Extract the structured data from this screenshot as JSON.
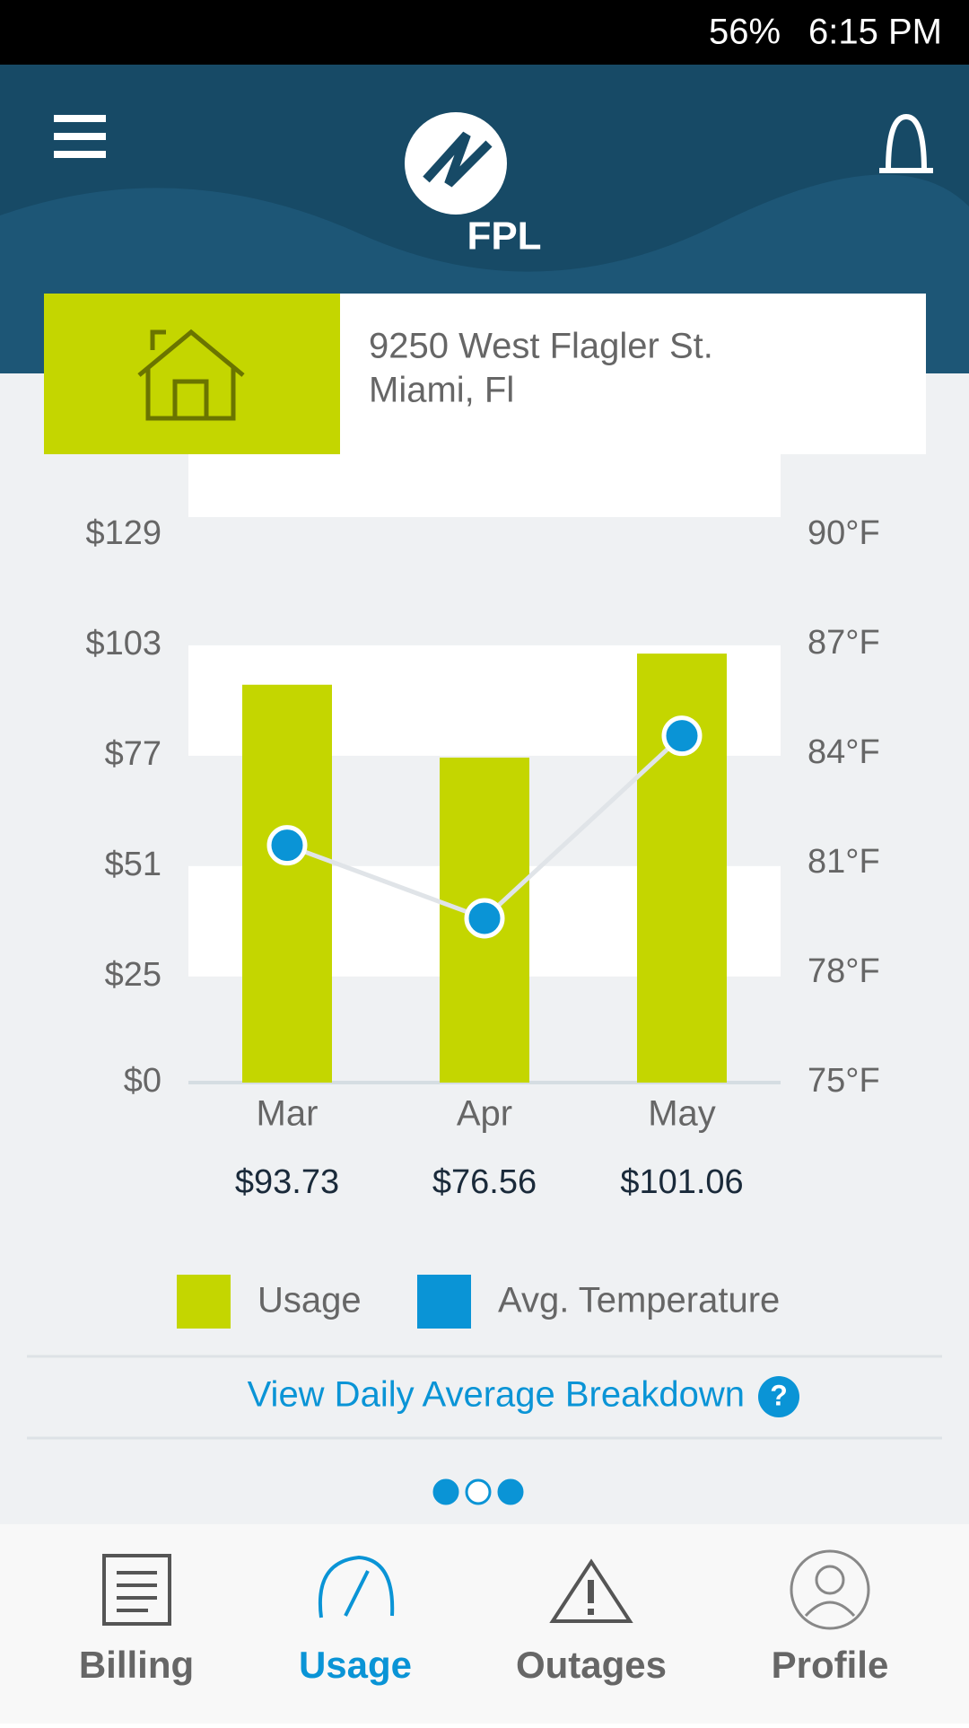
{
  "status_bar": {
    "battery": "56%",
    "time": "6:15 PM"
  },
  "header": {
    "logo": "FPL"
  },
  "address": {
    "line1": "9250 West Flagler St.",
    "line2": "Miami, Fl"
  },
  "chart_data": {
    "type": "bar",
    "categories": [
      "Mar",
      "Apr",
      "May"
    ],
    "series": [
      {
        "name": "Usage",
        "type": "bar",
        "color": "#c4d600",
        "values": [
          93.73,
          76.56,
          101.06
        ],
        "value_labels": [
          "$93.73",
          "$76.56",
          "$101.06"
        ]
      },
      {
        "name": "Avg. Temperature",
        "type": "line",
        "axis": "y2",
        "color": "#0a94d6",
        "values": [
          81.5,
          79.5,
          84.5
        ]
      }
    ],
    "ylim": [
      0,
      129
    ],
    "yticks": [
      {
        "value": 0,
        "label": "$0"
      },
      {
        "value": 25,
        "label": "$25"
      },
      {
        "value": 51,
        "label": "$51"
      },
      {
        "value": 77,
        "label": "$77"
      },
      {
        "value": 103,
        "label": "$103"
      },
      {
        "value": 129,
        "label": "$129"
      }
    ],
    "y2lim": [
      75,
      90
    ],
    "y2ticks": [
      {
        "value": 75,
        "label": "75°F"
      },
      {
        "value": 78,
        "label": "78°F"
      },
      {
        "value": 81,
        "label": "81°F"
      },
      {
        "value": 84,
        "label": "84°F"
      },
      {
        "value": 87,
        "label": "87°F"
      },
      {
        "value": 90,
        "label": "90°F"
      }
    ]
  },
  "link": {
    "text": "View Daily Average Breakdown",
    "help": "?"
  },
  "nav": [
    {
      "label": "Billing"
    },
    {
      "label": "Usage"
    },
    {
      "label": "Outages"
    },
    {
      "label": "Profile"
    }
  ]
}
